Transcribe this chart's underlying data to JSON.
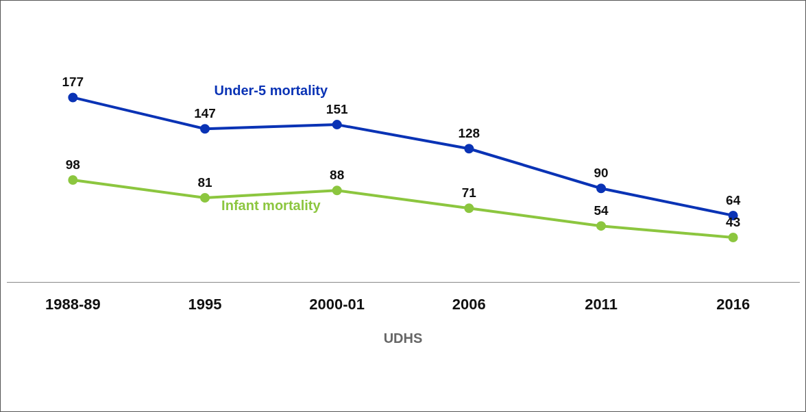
{
  "chart_data": {
    "type": "line",
    "xlabel": "UDHS",
    "categories": [
      "1988-89",
      "1995",
      "2000-01",
      "2006",
      "2011",
      "2016"
    ],
    "series": [
      {
        "name": "Under-5 mortality",
        "color": "#0a33b5",
        "values": [
          177,
          147,
          151,
          128,
          90,
          64
        ]
      },
      {
        "name": "Infant mortality",
        "color": "#8cc63f",
        "values": [
          98,
          81,
          88,
          71,
          54,
          43
        ]
      }
    ],
    "tick_labels": "x",
    "grid": false,
    "legend": false,
    "marker": "circle",
    "line_style": "solid",
    "data_labels": true
  }
}
